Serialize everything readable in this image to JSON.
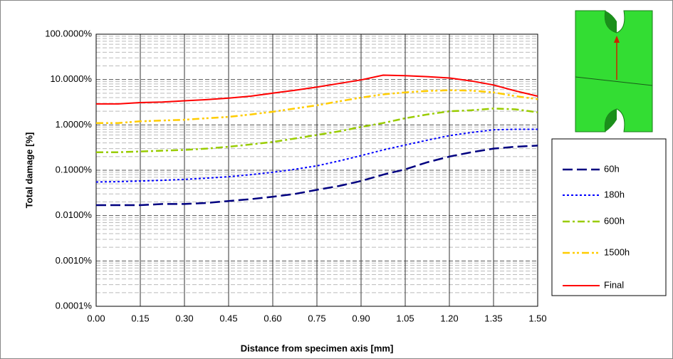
{
  "chart_data": {
    "type": "line",
    "y_label": "Total damage [%]",
    "x_label": "Distance from specimen axis [mm]",
    "log_scale_y": true,
    "grid": true,
    "legend_position": "right",
    "x": [
      0,
      0.075,
      0.15,
      0.225,
      0.3,
      0.375,
      0.45,
      0.525,
      0.6,
      0.675,
      0.75,
      0.825,
      0.9,
      0.975,
      1.05,
      1.125,
      1.2,
      1.275,
      1.35,
      1.425,
      1.5
    ],
    "series": [
      {
        "name": "60h",
        "color": "#000080",
        "values": [
          0.017,
          0.017,
          0.017,
          0.018,
          0.018,
          0.019,
          0.021,
          0.023,
          0.026,
          0.03,
          0.037,
          0.045,
          0.058,
          0.08,
          0.105,
          0.15,
          0.2,
          0.25,
          0.3,
          0.33,
          0.35
        ]
      },
      {
        "name": "180h",
        "color": "#0000ff",
        "values": [
          0.055,
          0.056,
          0.058,
          0.06,
          0.063,
          0.067,
          0.072,
          0.08,
          0.09,
          0.105,
          0.125,
          0.16,
          0.21,
          0.28,
          0.36,
          0.46,
          0.58,
          0.68,
          0.78,
          0.8,
          0.8
        ]
      },
      {
        "name": "600h",
        "color": "#99cc00",
        "values": [
          0.25,
          0.25,
          0.26,
          0.27,
          0.28,
          0.3,
          0.33,
          0.37,
          0.42,
          0.5,
          0.6,
          0.72,
          0.9,
          1.1,
          1.4,
          1.7,
          2.0,
          2.1,
          2.3,
          2.2,
          1.9
        ]
      },
      {
        "name": "1500h",
        "color": "#ffcc00",
        "values": [
          1.1,
          1.1,
          1.2,
          1.25,
          1.3,
          1.4,
          1.5,
          1.7,
          1.95,
          2.3,
          2.7,
          3.3,
          4.0,
          4.7,
          5.2,
          5.6,
          5.8,
          5.7,
          5.2,
          4.3,
          3.7
        ]
      },
      {
        "name": "Final",
        "color": "#ff0000",
        "values": [
          2.9,
          2.9,
          3.1,
          3.2,
          3.4,
          3.6,
          3.9,
          4.3,
          5.0,
          5.8,
          6.8,
          8.2,
          9.8,
          12.5,
          12.2,
          11.6,
          10.8,
          9.3,
          7.6,
          5.6,
          4.3
        ]
      }
    ],
    "xlim": [
      0,
      1.5
    ],
    "xticks": [
      {
        "value": 0,
        "label": "0.00"
      },
      {
        "value": 0.15,
        "label": "0.15"
      },
      {
        "value": 0.3,
        "label": "0.30"
      },
      {
        "value": 0.45,
        "label": "0.45"
      },
      {
        "value": 0.6,
        "label": "0.60"
      },
      {
        "value": 0.75,
        "label": "0.75"
      },
      {
        "value": 0.9,
        "label": "0.90"
      },
      {
        "value": 1.05,
        "label": "1.05"
      },
      {
        "value": 1.2,
        "label": "1.20"
      },
      {
        "value": 1.35,
        "label": "1.35"
      },
      {
        "value": 1.5,
        "label": "1.50"
      }
    ],
    "ylim": [
      0.0001,
      100
    ],
    "yticks": [
      {
        "value": 0.0001,
        "label": "0.0001%"
      },
      {
        "value": 0.001,
        "label": "0.0010%"
      },
      {
        "value": 0.01,
        "label": "0.0100%"
      },
      {
        "value": 0.1,
        "label": "0.1000%"
      },
      {
        "value": 1,
        "label": "1.0000%"
      },
      {
        "value": 10,
        "label": "10.0000%"
      },
      {
        "value": 100,
        "label": "100.0000%"
      }
    ]
  }
}
